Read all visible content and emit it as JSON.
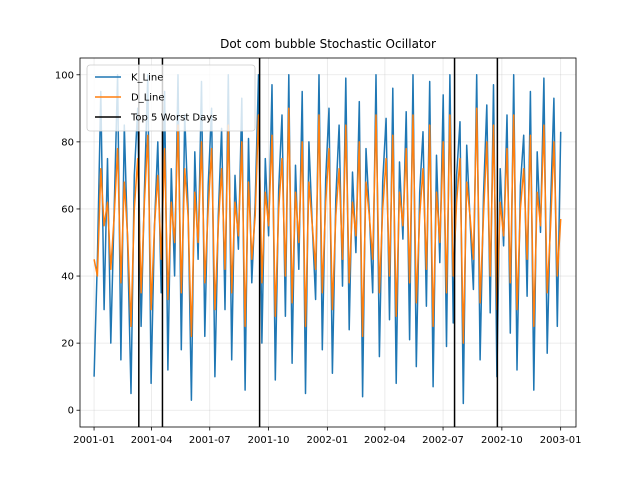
{
  "chart_data": {
    "type": "line",
    "title": "Dot com bubble Stochastic Ocillator",
    "xlabel": "",
    "ylabel": "",
    "x_range": [
      "2001-01-01",
      "2003-01-01"
    ],
    "xlim": [
      "2000-12-10",
      "2003-01-25"
    ],
    "ylim": [
      -5,
      105
    ],
    "grid": true,
    "legend": "upper-left",
    "x_ticks": [
      "2001-01",
      "2001-04",
      "2001-07",
      "2001-10",
      "2002-01",
      "2002-04",
      "2002-07",
      "2002-10",
      "2003-01"
    ],
    "y_ticks": [
      0,
      20,
      40,
      60,
      80,
      100
    ],
    "series": [
      {
        "name": "K_Line",
        "color": "#1f77b4",
        "values": [
          10,
          45,
          95,
          30,
          75,
          20,
          60,
          100,
          15,
          85,
          50,
          5,
          70,
          90,
          25,
          65,
          100,
          8,
          55,
          80,
          35,
          95,
          12,
          72,
          40,
          100,
          18,
          88,
          60,
          3,
          77,
          45,
          98,
          22,
          67,
          90,
          10,
          58,
          84,
          30,
          100,
          15,
          70,
          48,
          93,
          6,
          81,
          38,
          62,
          100,
          20,
          75,
          52,
          97,
          9,
          66,
          88,
          28,
          100,
          14,
          73,
          42,
          95,
          5,
          80,
          55,
          33,
          100,
          18,
          69,
          90,
          11,
          63,
          85,
          37,
          99,
          24,
          71,
          47,
          92,
          4,
          78,
          59,
          35,
          100,
          16,
          68,
          87,
          27,
          96,
          8,
          74,
          51,
          89,
          21,
          100,
          13,
          65,
          83,
          31,
          98,
          7,
          76,
          44,
          94,
          19,
          100,
          26,
          70,
          86,
          2,
          79,
          57,
          36,
          100,
          15,
          64,
          91,
          29,
          97,
          10,
          72,
          49,
          88,
          23,
          100,
          12,
          67,
          82,
          34,
          95,
          6,
          77,
          53,
          99,
          17,
          61,
          93,
          25,
          83
        ]
      },
      {
        "name": "D_Line",
        "color": "#ff7f0e",
        "values": [
          45,
          40,
          72,
          55,
          62,
          42,
          58,
          78,
          38,
          68,
          52,
          25,
          60,
          75,
          35,
          62,
          82,
          30,
          55,
          70,
          45,
          78,
          33,
          62,
          50,
          85,
          35,
          72,
          58,
          22,
          65,
          50,
          80,
          38,
          60,
          78,
          30,
          55,
          72,
          42,
          85,
          35,
          62,
          52,
          80,
          25,
          68,
          45,
          58,
          88,
          38,
          65,
          55,
          82,
          28,
          60,
          75,
          40,
          90,
          32,
          65,
          50,
          80,
          25,
          68,
          55,
          42,
          88,
          35,
          62,
          78,
          30,
          58,
          72,
          45,
          85,
          38,
          62,
          52,
          80,
          22,
          68,
          58,
          45,
          88,
          35,
          60,
          75,
          40,
          82,
          28,
          65,
          55,
          78,
          38,
          88,
          32,
          58,
          72,
          42,
          85,
          25,
          65,
          50,
          80,
          35,
          88,
          40,
          62,
          75,
          20,
          68,
          58,
          45,
          90,
          32,
          58,
          80,
          40,
          85,
          30,
          62,
          52,
          78,
          38,
          88,
          30,
          60,
          72,
          45,
          82,
          25,
          65,
          55,
          85,
          35,
          55,
          80,
          40,
          57
        ]
      },
      {
        "name": "Top 5 Worst Days",
        "color": "#000000",
        "type": "vline",
        "x": [
          "2001-03-12",
          "2001-04-18",
          "2001-09-17",
          "2002-07-19",
          "2002-09-24"
        ]
      }
    ]
  }
}
